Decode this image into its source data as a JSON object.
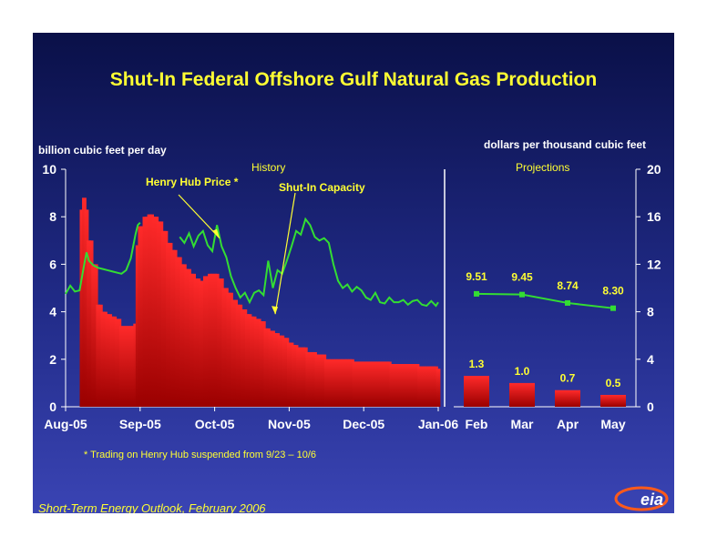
{
  "title": "Shut-In Federal Offshore Gulf Natural Gas Production",
  "left_axis_label": "billion cubic feet per day",
  "right_axis_label": "dollars per thousand cubic feet",
  "history_label": "History",
  "projections_label": "Projections",
  "annotation_price": "Henry Hub Price *",
  "annotation_capacity": "Shut-In Capacity",
  "footnote": "* Trading on Henry Hub suspended from 9/23 – 10/6",
  "source": "Short-Term Energy Outlook, February 2006",
  "logo_text": "eia",
  "colors": {
    "bar": "#e60000",
    "line": "#33dd33",
    "title": "#ffff33",
    "axis": "#ffffff"
  },
  "chart_data": [
    {
      "type": "bar",
      "panel": "history",
      "series_name": "Shut-In Capacity",
      "xlabel": "",
      "ylabel": "billion cubic feet per day",
      "ylim": [
        0,
        10
      ],
      "yticks": [
        0,
        2,
        4,
        6,
        8,
        10
      ],
      "x_ticks": [
        "Aug-05",
        "Sep-05",
        "Oct-05",
        "Nov-05",
        "Dec-05",
        "Jan-06"
      ],
      "x_range": [
        0,
        160
      ],
      "shut_in_capacity": {
        "x": [
          7,
          8,
          9,
          10,
          12,
          14,
          16,
          18,
          20,
          22,
          24,
          26,
          28,
          30,
          31,
          32,
          34,
          36,
          38,
          40,
          42,
          44,
          46,
          48,
          50,
          52,
          54,
          56,
          58,
          60,
          62,
          64,
          66,
          68,
          70,
          72,
          74,
          76,
          78,
          80,
          82,
          84,
          86,
          88,
          90,
          92,
          94,
          96,
          98,
          100,
          104,
          108,
          112,
          116,
          120,
          124,
          128,
          132,
          136,
          140,
          144,
          148,
          152,
          156,
          160
        ],
        "values": [
          8.3,
          8.8,
          8.3,
          7.0,
          6.0,
          4.3,
          4.0,
          3.9,
          3.8,
          3.7,
          3.4,
          3.4,
          3.4,
          3.5,
          6.8,
          7.6,
          8.0,
          8.1,
          8.0,
          7.8,
          7.4,
          6.9,
          6.6,
          6.3,
          6.0,
          5.8,
          5.6,
          5.4,
          5.3,
          5.5,
          5.6,
          5.6,
          5.4,
          5.0,
          4.8,
          4.5,
          4.3,
          4.1,
          3.9,
          3.8,
          3.7,
          3.6,
          3.3,
          3.2,
          3.1,
          3.0,
          2.9,
          2.7,
          2.6,
          2.5,
          2.3,
          2.2,
          2.0,
          2.0,
          2.0,
          1.9,
          1.9,
          1.9,
          1.9,
          1.8,
          1.8,
          1.8,
          1.7,
          1.7,
          1.6
        ]
      },
      "henry_hub_price": {
        "y2lim": [
          0,
          20
        ],
        "y2ticks": [
          0,
          4,
          8,
          12,
          16,
          20
        ],
        "segments": [
          {
            "x": [
              0,
              2,
              4,
              6,
              8,
              9,
              10,
              12,
              14,
              16,
              18,
              20,
              22,
              24,
              26,
              28,
              30,
              31,
              32
            ],
            "values": [
              9.5,
              10.2,
              9.7,
              9.8,
              12.0,
              13.0,
              12.3,
              11.9,
              11.7,
              11.6,
              11.5,
              11.4,
              11.3,
              11.2,
              11.5,
              12.5,
              14.5,
              15.3,
              15.5
            ]
          },
          {
            "x": [
              49,
              51,
              53,
              55,
              57,
              59,
              61,
              63,
              65,
              67,
              69,
              71,
              73,
              75,
              77,
              79,
              81,
              83,
              85,
              87,
              89,
              91,
              93,
              95,
              97,
              99,
              101,
              103,
              105,
              107,
              109,
              111,
              113,
              115,
              117,
              119,
              121,
              123,
              125,
              127,
              129,
              131,
              133,
              135,
              137,
              139,
              141,
              143,
              145,
              147,
              149,
              151,
              153,
              155,
              157,
              159,
              160
            ],
            "values": [
              14.3,
              13.8,
              14.6,
              13.5,
              14.4,
              14.8,
              13.6,
              13.1,
              15.3,
              13.5,
              12.6,
              11.0,
              10.0,
              9.2,
              9.6,
              8.8,
              9.6,
              9.8,
              9.4,
              12.3,
              10.0,
              11.5,
              11.2,
              12.3,
              13.5,
              14.8,
              14.5,
              15.8,
              15.3,
              14.3,
              14.0,
              14.2,
              13.8,
              12.0,
              10.6,
              10.0,
              10.3,
              9.7,
              10.1,
              9.8,
              9.2,
              9.0,
              9.6,
              8.8,
              8.7,
              9.2,
              8.8,
              8.8,
              9.0,
              8.6,
              8.9,
              9.0,
              8.6,
              8.5,
              8.9,
              8.5,
              8.8
            ]
          }
        ]
      }
    },
    {
      "type": "bar",
      "panel": "projections",
      "categories": [
        "Feb",
        "Mar",
        "Apr",
        "May"
      ],
      "ylim": [
        0,
        10
      ],
      "shut_in_capacity": [
        1.3,
        1.0,
        0.7,
        0.5
      ],
      "shut_in_labels": [
        "1.3",
        "1.0",
        "0.7",
        "0.5"
      ],
      "henry_hub_price": [
        9.51,
        9.45,
        8.74,
        8.3
      ],
      "price_labels": [
        "9.51",
        "9.45",
        "8.74",
        "8.30"
      ],
      "y2lim": [
        0,
        20
      ],
      "y2ticks": [
        0,
        4,
        8,
        12,
        16,
        20
      ]
    }
  ]
}
